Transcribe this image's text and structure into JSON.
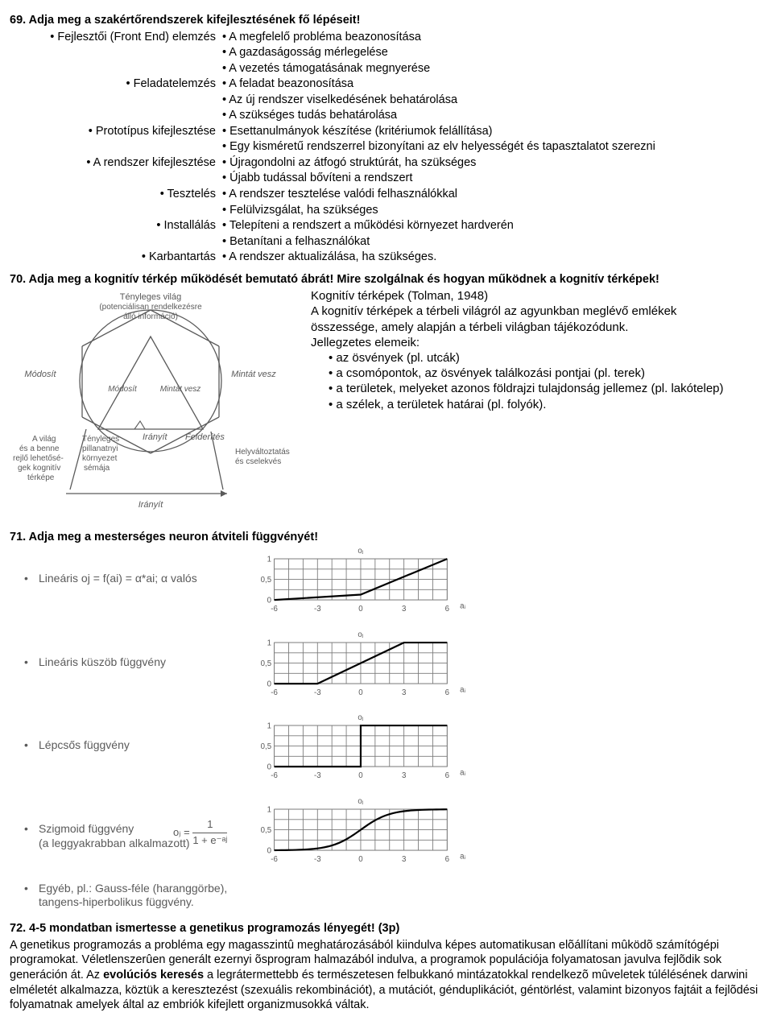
{
  "colors": {
    "text": "#000000",
    "gray": "#5a5a5a",
    "gridline": "#7a7a7a",
    "curve": "#000000",
    "background": "#ffffff"
  },
  "q69": {
    "title": "69. Adja meg a szakértőrendszerek kifejlesztésének fő lépéseit!",
    "rows": [
      {
        "left": "• Fejlesztői (Front End) elemzés",
        "right": "• A megfelelő probléma beazonosítása"
      },
      {
        "left": "",
        "right": "• A gazdaságosság mérlegelése"
      },
      {
        "left": "",
        "right": "• A vezetés támogatásának megnyerése"
      },
      {
        "left": "• Feladatelemzés",
        "right": "• A feladat beazonosítása"
      },
      {
        "left": "",
        "right": "• Az új rendszer viselkedésének behatárolása"
      },
      {
        "left": "",
        "right": "• A szükséges tudás behatárolása"
      },
      {
        "left": "• Prototípus kifejlesztése",
        "right": "• Esettanulmányok készítése (kritériumok felállítása)"
      },
      {
        "left": "",
        "right": "• Egy kisméretű rendszerrel bizonyítani az elv helyességét és tapasztalatot szerezni"
      },
      {
        "left": "• A rendszer kifejlesztése",
        "right": "• Újragondolni az átfogó struktúrát, ha szükséges"
      },
      {
        "left": "",
        "right": "• Újabb tudással bővíteni a rendszert"
      },
      {
        "left": "• Tesztelés",
        "right": "• A rendszer tesztelése valódi felhasználókkal"
      },
      {
        "left": "",
        "right": "• Felülvizsgálat, ha szükséges"
      },
      {
        "left": "• Installálás",
        "right": "• Telepíteni a rendszert a működési környezet hardverén"
      },
      {
        "left": "",
        "right": "• Betanítani a felhasználókat"
      },
      {
        "left": "• Karbantartás",
        "right": "• A rendszer aktualizálása, ha szükséges."
      }
    ]
  },
  "q70": {
    "title": "70. Adja meg a kognitív térkép működését bemutató ábrát! Mire szolgálnak és hogyan működnek a kognitív térképek!",
    "fig": {
      "top1": "Tényleges világ",
      "top2": "(potenciálisan rendelkezésre",
      "top3": "álló információ)",
      "left1": "Módosít",
      "right1": "Mintát vesz",
      "inner_left": "Módosít",
      "inner_right": "Mintát vesz",
      "bl1": "A világ",
      "bl2": "és a benne",
      "bl3": "rejlő lehetősé-",
      "bl4": "gek kognitív",
      "bl5": "térképe",
      "bl_col2_1": "Tényleges",
      "bl_col2_2": "pillanatnyi",
      "bl_col2_3": "környezet",
      "bl_col2_4": "sémája",
      "bot_left": "Irányít",
      "bot_right_tri": "Felderítés",
      "br1": "Helyváltoztatás",
      "br2": "és cselekvés",
      "bottom": "Irányít"
    },
    "body_lines": [
      "Kognitív térképek (Tolman, 1948)",
      "A kognitív térképek a térbeli világról az agyunkban meglévő emlékek",
      "összessége, amely alapján a térbeli világban tájékozódunk.",
      "Jellegzetes elemeik:"
    ],
    "bullets": [
      "• az ösvények (pl. utcák)",
      "• a csomópontok, az ösvények találkozási pontjai (pl. terek)",
      "• a területek, melyeket azonos földrajzi tulajdonság jellemez (pl. lakótelep)",
      "• a szélek, a területek határai (pl. folyók)."
    ]
  },
  "q71": {
    "title": "71. Adja meg a mesterséges neuron átviteli függvényét!",
    "ylabel": "oⱼ",
    "xlabel": "aᵢ",
    "x_min": -6,
    "x_max": 6,
    "y_min": 0,
    "y_max": 1,
    "x_ticks": [
      -6,
      -3,
      0,
      3,
      6
    ],
    "y_ticks": [
      0,
      0.5,
      1
    ],
    "grid_color": "#7a7a7a",
    "curve_color": "#000000",
    "rows": [
      {
        "label": "Lineáris   oj = f(ai) = α*ai;    α valós",
        "type": "linear",
        "points": [
          [
            -6,
            0
          ],
          [
            0,
            0.13
          ],
          [
            6,
            1
          ]
        ]
      },
      {
        "label": "Lineáris küszöb függvény",
        "type": "linear_threshold",
        "points": [
          [
            -6,
            0
          ],
          [
            -3,
            0
          ],
          [
            3,
            1
          ],
          [
            6,
            1
          ]
        ]
      },
      {
        "label": "Lépcsős függvény",
        "type": "step",
        "points": [
          [
            -6,
            0
          ],
          [
            0,
            0
          ],
          [
            0,
            1
          ],
          [
            6,
            1
          ]
        ]
      },
      {
        "label_main": "Szigmoid függvény",
        "label_sub": "(a leggyakrabban alkalmazott)",
        "formula_lhs": "oⱼ =",
        "formula_num": "1",
        "formula_den": "1 + e⁻ᵃʲ",
        "type": "sigmoid"
      }
    ],
    "other": "Egyéb, pl.: Gauss-féle (haranggörbe),\ntangens-hiperbolikus  függvény."
  },
  "q72": {
    "title": "72. 4-5 mondatban ismertesse a genetikus programozás lényegét! (3p)",
    "p_before_bold": "A genetikus programozás a probléma egy magasszintû meghatározásából kiindulva képes automatikusan elõállítani mûködõ számítógépi programokat. Véletlenszerûen generált ezernyi õsprogram halmazából indulva, a programok populációja folyamatosan javulva fejlõdik sok generáción át. Az ",
    "bold_span": "evolúciós keresés",
    "p_after_bold": " a legrátermettebb és természetesen felbukkanó mintázatokkal rendelkezõ mûveletek túlélésének darwini elméletét alkalmazza, köztük a keresztezést (szexuális rekombinációt), a mutációt, génduplikációt, géntörlést, valamint bizonyos fajtáit a fejlõdési folyamatnak amelyek által az embriók kifejlett organizmusokká váltak."
  }
}
